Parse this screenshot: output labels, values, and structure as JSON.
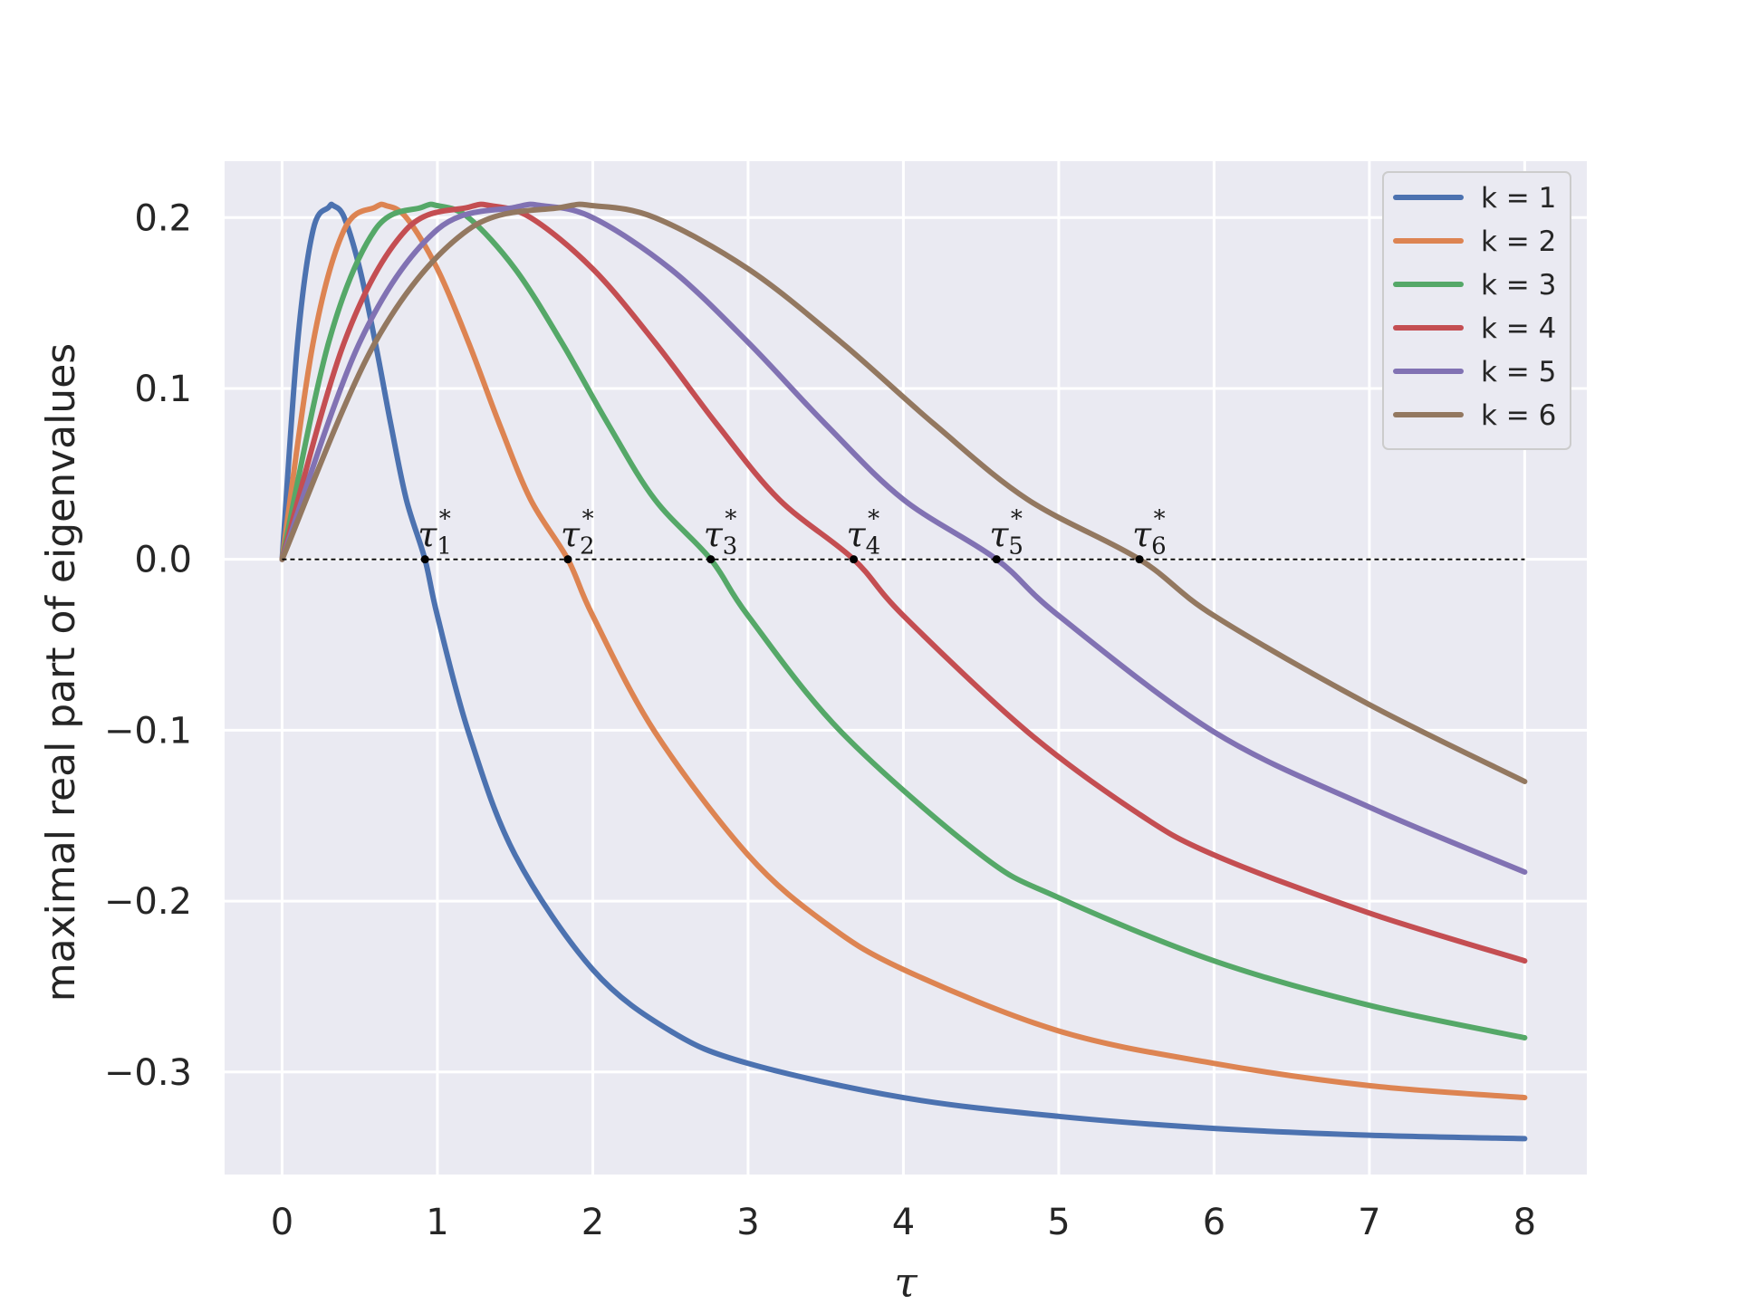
{
  "chart_data": {
    "type": "line",
    "xlabel": "τ",
    "ylabel": "maximal real part of eigenvalues",
    "xlim": [
      -0.37,
      8.4
    ],
    "ylim": [
      -0.36,
      0.233
    ],
    "xticks": [
      0,
      1,
      2,
      3,
      4,
      5,
      6,
      7,
      8
    ],
    "xtick_labels": [
      "0",
      "1",
      "2",
      "3",
      "4",
      "5",
      "6",
      "7",
      "8"
    ],
    "yticks": [
      0.2,
      0.1,
      0.0,
      -0.1,
      -0.2,
      -0.3
    ],
    "ytick_labels": [
      "0.2",
      "0.1",
      "0.0",
      "−0.1",
      "−0.2",
      "−0.3"
    ],
    "grid": true,
    "background": "#eaeaf2",
    "legend_position": "top-right",
    "reference_line": {
      "y": 0.0,
      "x": [
        0,
        8
      ],
      "style": "dashed",
      "color": "#000000"
    },
    "series": [
      {
        "name": "k = 1",
        "k": 1,
        "color": "#4c72b0",
        "x": [
          0,
          0.1,
          0.2,
          0.3,
          0.33,
          0.4,
          0.5,
          0.6,
          0.7,
          0.8,
          0.92,
          1.0,
          1.2,
          1.5,
          2.0,
          2.5,
          3.0,
          4.0,
          5.0,
          6.0,
          7.0,
          8.0
        ],
        "y": [
          0.0,
          0.127,
          0.193,
          0.206,
          0.207,
          0.2,
          0.17,
          0.127,
          0.079,
          0.035,
          0.0,
          -0.033,
          -0.101,
          -0.173,
          -0.24,
          -0.276,
          -0.295,
          -0.315,
          -0.326,
          -0.333,
          -0.337,
          -0.339
        ]
      },
      {
        "name": "k = 2",
        "k": 2,
        "color": "#dd8452",
        "x": [
          0,
          0.2,
          0.4,
          0.6,
          0.67,
          0.8,
          1.0,
          1.2,
          1.4,
          1.6,
          1.84,
          2.0,
          2.4,
          3.0,
          3.5,
          4.0,
          5.0,
          6.0,
          7.0,
          8.0
        ],
        "y": [
          0.0,
          0.127,
          0.193,
          0.206,
          0.207,
          0.2,
          0.17,
          0.127,
          0.079,
          0.035,
          0.0,
          -0.033,
          -0.101,
          -0.173,
          -0.213,
          -0.24,
          -0.276,
          -0.295,
          -0.308,
          -0.315
        ]
      },
      {
        "name": "k = 3",
        "k": 3,
        "color": "#55a868",
        "x": [
          0,
          0.3,
          0.6,
          0.9,
          1.0,
          1.2,
          1.5,
          1.8,
          2.1,
          2.4,
          2.76,
          3.0,
          3.6,
          4.5,
          5.0,
          6.0,
          7.0,
          8.0
        ],
        "y": [
          0.0,
          0.127,
          0.193,
          0.206,
          0.207,
          0.2,
          0.17,
          0.127,
          0.079,
          0.035,
          0.0,
          -0.033,
          -0.101,
          -0.173,
          -0.198,
          -0.235,
          -0.261,
          -0.28
        ]
      },
      {
        "name": "k = 4",
        "k": 4,
        "color": "#c44e52",
        "x": [
          0,
          0.4,
          0.8,
          1.2,
          1.34,
          1.6,
          2.0,
          2.4,
          2.8,
          3.2,
          3.68,
          4.0,
          4.8,
          5.5,
          6.0,
          7.0,
          8.0
        ],
        "y": [
          0.0,
          0.127,
          0.193,
          0.206,
          0.207,
          0.2,
          0.17,
          0.127,
          0.079,
          0.035,
          0.0,
          -0.033,
          -0.101,
          -0.148,
          -0.173,
          -0.207,
          -0.235
        ]
      },
      {
        "name": "k = 5",
        "k": 5,
        "color": "#8172b3",
        "x": [
          0,
          0.5,
          1.0,
          1.5,
          1.67,
          2.0,
          2.5,
          3.0,
          3.5,
          4.0,
          4.6,
          5.0,
          6.0,
          7.0,
          8.0
        ],
        "y": [
          0.0,
          0.127,
          0.193,
          0.206,
          0.207,
          0.2,
          0.17,
          0.127,
          0.079,
          0.035,
          0.0,
          -0.033,
          -0.101,
          -0.145,
          -0.183
        ]
      },
      {
        "name": "k = 6",
        "k": 6,
        "color": "#937860",
        "x": [
          0,
          0.6,
          1.2,
          1.8,
          2.0,
          2.4,
          3.0,
          3.6,
          4.2,
          4.8,
          5.52,
          6.0,
          7.0,
          8.0
        ],
        "y": [
          0.0,
          0.127,
          0.193,
          0.206,
          0.207,
          0.2,
          0.17,
          0.127,
          0.079,
          0.035,
          0.0,
          -0.033,
          -0.085,
          -0.13
        ]
      }
    ],
    "annotations": [
      {
        "base": "τ",
        "sub": "1",
        "sup": "*",
        "x": 0.92,
        "y": 0.0
      },
      {
        "base": "τ",
        "sub": "2",
        "sup": "*",
        "x": 1.84,
        "y": 0.0
      },
      {
        "base": "τ",
        "sub": "3",
        "sup": "*",
        "x": 2.76,
        "y": 0.0
      },
      {
        "base": "τ",
        "sub": "4",
        "sup": "*",
        "x": 3.68,
        "y": 0.0
      },
      {
        "base": "τ",
        "sub": "5",
        "sup": "*",
        "x": 4.6,
        "y": 0.0
      },
      {
        "base": "τ",
        "sub": "6",
        "sup": "*",
        "x": 5.52,
        "y": 0.0
      }
    ]
  }
}
